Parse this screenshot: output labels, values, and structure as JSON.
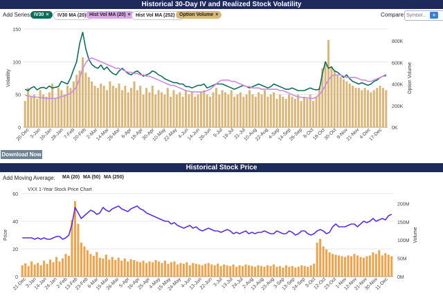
{
  "top": {
    "title": "Historical 30-Day IV and Realized Stock Volatility",
    "add_series_label": "Add Series:",
    "tags": [
      {
        "label": "IV30",
        "x": "×",
        "bg": "#0f6b5c",
        "fg": "#ffffff"
      },
      {
        "label": "IV30 MA (20)",
        "x": "",
        "bg": "#ffffff",
        "fg": "#222222"
      },
      {
        "label": "Hist Vol MA (20)",
        "x": "×",
        "bg": "#d9a6e8",
        "fg": "#222222"
      },
      {
        "label": "Hist Vol MA (252)",
        "x": "×",
        "bg": "#ffffff",
        "fg": "#222222"
      },
      {
        "label": "Option Volume",
        "x": "×",
        "bg": "#d8b77c",
        "fg": "#222222"
      }
    ],
    "compare_label": "Compare:",
    "compare_placeholder": "Symbol...",
    "plus": "+",
    "download": "Download Now"
  },
  "bottom": {
    "title": "Historical Stock Price",
    "add_ma_label": "Add Moving Average:",
    "ma_options": [
      "MA (20)",
      "MA (50)",
      "MA (250)"
    ]
  },
  "chart_data": [
    {
      "type": "line",
      "ylabel": "Volatility",
      "y2label": "Option Volume",
      "ylim": [
        0,
        150
      ],
      "y_ticks": [
        "0",
        "50",
        "100",
        "150"
      ],
      "y2_ticks": [
        "0K",
        "200K",
        "400K",
        "600K",
        "800K"
      ],
      "y2lim": [
        0,
        900000
      ],
      "x_ticks": [
        "20-Dec",
        "3-Jan",
        "16-Jan",
        "28-Jan",
        "7-Feb",
        "20-Feb",
        "2-Mar",
        "14-Mar",
        "26-Mar",
        "6-Apr",
        "18-Apr",
        "30-Apr",
        "10-May",
        "22-May",
        "4-Jun",
        "14-Jun",
        "26-Jun",
        "9-Jul",
        "19-Jul",
        "31-Jul",
        "10-Aug",
        "22-Aug",
        "4-Sep",
        "14-Sep",
        "26-Sep",
        "8-Oct",
        "18-Oct",
        "30-Oct",
        "9-Nov",
        "21-Nov",
        "4-Dec",
        "17-Dec"
      ],
      "series": [
        {
          "name": "IV30",
          "color": "#0f6b5c",
          "values": [
            58,
            56,
            60,
            62,
            57,
            60,
            61,
            59,
            63,
            60,
            61,
            62,
            70,
            68,
            66,
            75,
            88,
            100,
            128,
            145,
            120,
            104,
            96,
            92,
            90,
            95,
            88,
            92,
            86,
            82,
            80,
            86,
            90,
            86,
            82,
            80,
            84,
            86,
            82,
            78,
            80,
            82,
            86,
            84,
            80,
            78,
            74,
            72,
            70,
            68,
            68,
            66,
            66,
            62,
            62,
            60,
            62,
            64,
            64,
            66,
            60,
            62,
            64,
            66,
            66,
            66,
            64,
            62,
            60,
            58,
            60,
            62,
            64,
            62,
            60,
            62,
            64,
            66,
            64,
            62,
            60,
            62,
            66,
            64,
            62,
            60,
            58,
            58,
            60,
            58,
            56,
            56,
            56,
            58,
            60,
            58,
            57,
            58,
            82,
            100,
            90,
            92,
            86,
            84,
            80,
            76,
            80,
            74,
            70,
            68,
            66,
            68,
            66,
            64,
            66,
            70,
            72,
            76,
            78,
            80
          ]
        },
        {
          "name": "Hist Vol MA (20)",
          "color": "#c98ae0",
          "values": [
            49,
            48,
            47,
            46,
            46,
            45,
            45,
            44,
            44,
            44,
            44,
            45,
            47,
            48,
            50,
            52,
            56,
            62,
            75,
            90,
            98,
            104,
            106,
            104,
            102,
            100,
            98,
            96,
            94,
            92,
            90,
            90,
            88,
            86,
            84,
            84,
            82,
            82,
            80,
            80,
            78,
            78,
            76,
            74,
            72,
            70,
            68,
            66,
            64,
            64,
            62,
            60,
            58,
            56,
            55,
            54,
            54,
            54,
            54,
            54,
            56,
            58,
            62,
            66,
            70,
            72,
            72,
            72,
            70,
            70,
            68,
            66,
            64,
            62,
            62,
            60,
            60,
            60,
            58,
            58,
            58,
            58,
            58,
            58,
            56,
            56,
            54,
            52,
            50,
            48,
            46,
            46,
            45,
            45,
            44,
            44,
            46,
            50,
            56,
            64,
            72,
            78,
            80,
            80,
            80,
            78,
            76,
            76,
            76,
            76,
            74,
            72,
            72,
            70,
            70,
            72,
            74,
            76,
            78,
            78
          ]
        },
        {
          "name": "Option Volume",
          "color": "#d8b77c",
          "type": "bar",
          "values": [
            240000,
            360000,
            280000,
            300000,
            260000,
            340000,
            300000,
            280000,
            320000,
            400000,
            260000,
            360000,
            340000,
            300000,
            380000,
            360000,
            420000,
            480000,
            520000,
            640000,
            500000,
            460000,
            420000,
            380000,
            360000,
            400000,
            380000,
            340000,
            420000,
            380000,
            360000,
            400000,
            340000,
            380000,
            320000,
            360000,
            420000,
            340000,
            380000,
            300000,
            360000,
            320000,
            380000,
            300000,
            340000,
            320000,
            300000,
            360000,
            280000,
            340000,
            300000,
            320000,
            280000,
            340000,
            300000,
            320000,
            280000,
            300000,
            320000,
            340000,
            300000,
            280000,
            320000,
            360000,
            300000,
            340000,
            320000,
            300000,
            340000,
            280000,
            300000,
            320000,
            280000,
            300000,
            340000,
            300000,
            280000,
            320000,
            300000,
            340000,
            280000,
            300000,
            320000,
            260000,
            300000,
            280000,
            260000,
            300000,
            280000,
            260000,
            300000,
            240000,
            280000,
            260000,
            300000,
            240000,
            280000,
            360000,
            540000,
            600000,
            800000,
            560000,
            520000,
            480000,
            460000,
            440000,
            420000,
            400000,
            380000,
            360000,
            360000,
            340000,
            360000,
            340000,
            320000,
            340000,
            360000,
            380000,
            360000,
            340000
          ]
        }
      ]
    },
    {
      "type": "line",
      "title": "VXX 1-Year Stock Price Chart",
      "ylabel": "Price",
      "y2label": "Volume",
      "ylim": [
        0,
        60
      ],
      "y_ticks": [
        "0",
        "20",
        "40",
        "60"
      ],
      "y2_ticks": [
        "0M",
        "50M",
        "100M",
        "150M",
        "200M"
      ],
      "y2lim": [
        0,
        220000000
      ],
      "x_ticks": [
        "21-Dec",
        "3-Jan",
        "14-Jan",
        "24-Jan",
        "2-Feb",
        "13-Feb",
        "23-Feb",
        "6-Mar",
        "15-Mar",
        "26-Mar",
        "5-Apr",
        "16-Apr",
        "25-Apr",
        "4-May",
        "15-May",
        "24-May",
        "4-Jun",
        "13-Jun",
        "22-Jun",
        "3-Jul",
        "13-Jul",
        "24-Jul",
        "2-Aug",
        "13-Aug",
        "23-Aug",
        "3-Sep",
        "13-Sep",
        "24-Sep",
        "3-Oct",
        "12-Oct",
        "23-Oct",
        "1-Nov",
        "12-Nov",
        "21-Nov",
        "30-Nov",
        "11-Dec"
      ],
      "series": [
        {
          "name": "Price",
          "color": "#5a2fd6",
          "values": [
            28,
            28,
            28,
            28,
            27,
            28,
            27,
            28,
            27,
            27,
            28,
            29,
            29,
            27,
            28,
            30,
            38,
            50,
            46,
            42,
            44,
            46,
            48,
            47,
            45,
            46,
            50,
            48,
            47,
            49,
            50,
            51,
            49,
            48,
            47,
            49,
            50,
            51,
            49,
            48,
            46,
            45,
            44,
            43,
            42,
            41,
            40,
            40,
            38,
            39,
            37,
            36,
            35,
            36,
            37,
            35,
            36,
            34,
            33,
            34,
            35,
            34,
            33,
            33,
            32,
            33,
            34,
            33,
            31,
            32,
            31,
            32,
            33,
            31,
            32,
            31,
            32,
            32,
            33,
            32,
            31,
            31,
            33,
            32,
            31,
            31,
            33,
            32,
            30,
            31,
            33,
            33,
            31,
            30,
            31,
            33,
            34,
            33,
            31,
            32,
            36,
            38,
            36,
            36,
            36,
            37,
            38,
            38,
            36,
            38,
            40,
            39,
            40,
            42,
            40,
            41,
            42,
            41,
            44,
            45
          ]
        },
        {
          "name": "Volume",
          "color": "#e8a552",
          "type": "bar",
          "values": [
            30000000,
            35000000,
            28000000,
            40000000,
            32000000,
            36000000,
            30000000,
            42000000,
            34000000,
            45000000,
            38000000,
            52000000,
            40000000,
            48000000,
            60000000,
            55000000,
            150000000,
            200000000,
            140000000,
            90000000,
            80000000,
            70000000,
            60000000,
            55000000,
            65000000,
            50000000,
            48000000,
            58000000,
            45000000,
            52000000,
            44000000,
            50000000,
            42000000,
            48000000,
            40000000,
            46000000,
            44000000,
            40000000,
            38000000,
            42000000,
            36000000,
            40000000,
            38000000,
            44000000,
            40000000,
            36000000,
            42000000,
            34000000,
            38000000,
            40000000,
            32000000,
            36000000,
            34000000,
            38000000,
            30000000,
            36000000,
            34000000,
            32000000,
            30000000,
            34000000,
            36000000,
            32000000,
            30000000,
            34000000,
            28000000,
            32000000,
            30000000,
            28000000,
            32000000,
            26000000,
            30000000,
            28000000,
            32000000,
            30000000,
            28000000,
            26000000,
            30000000,
            28000000,
            26000000,
            30000000,
            28000000,
            32000000,
            26000000,
            28000000,
            24000000,
            30000000,
            26000000,
            28000000,
            24000000,
            26000000,
            30000000,
            28000000,
            26000000,
            30000000,
            34000000,
            90000000,
            100000000,
            80000000,
            72000000,
            64000000,
            60000000,
            58000000,
            56000000,
            54000000,
            52000000,
            56000000,
            54000000,
            60000000,
            56000000,
            52000000,
            50000000,
            54000000,
            56000000,
            64000000,
            60000000,
            70000000,
            56000000,
            62000000,
            58000000,
            54000000
          ]
        }
      ]
    }
  ]
}
